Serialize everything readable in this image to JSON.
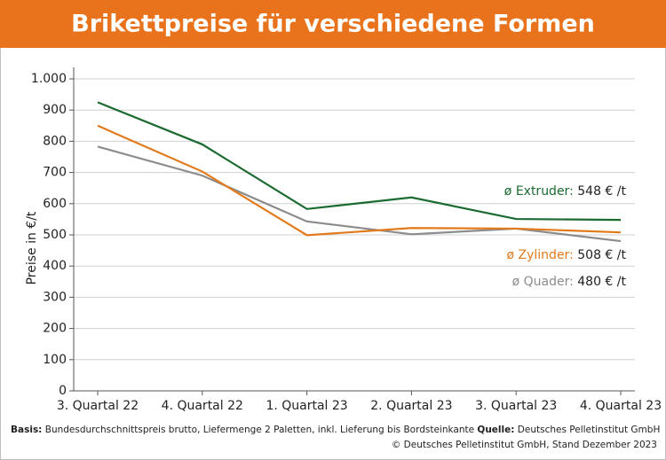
{
  "chart_data": {
    "type": "line",
    "title": "Brikettpreise für verschiedene Formen",
    "y_label": "Preise in €/t",
    "categories": [
      "3. Quartal 22",
      "4. Quartal 22",
      "1. Quartal 23",
      "2. Quartal 23",
      "3. Quartal 23",
      "4. Quartal 23"
    ],
    "series": [
      {
        "name": "ø Extruder:",
        "color": "#1b6a30",
        "values": [
          925,
          790,
          583,
          620,
          551,
          548
        ],
        "value_labels": [
          null,
          null,
          null,
          null,
          null,
          "548 € /t"
        ]
      },
      {
        "name": "ø Zylinder:",
        "color": "#e27a1c",
        "values": [
          850,
          703,
          499,
          522,
          520,
          508
        ],
        "value_labels": [
          null,
          null,
          null,
          null,
          null,
          "508 € /t"
        ]
      },
      {
        "name": "ø Quader:",
        "color": "#8c8c8c",
        "values": [
          783,
          690,
          543,
          502,
          520,
          480
        ],
        "value_labels": [
          null,
          null,
          null,
          null,
          null,
          "480 € /t"
        ]
      }
    ],
    "ylim": [
      0,
      1000
    ],
    "yticks": [
      0,
      100,
      200,
      300,
      400,
      500,
      600,
      700,
      800,
      900,
      {
        "value": 1000,
        "label": "1.000"
      }
    ],
    "grid": true
  },
  "footer": {
    "basis_label": "Basis:",
    "basis_text": "Bundesdurchschnittspreis brutto, Liefermenge 2 Paletten, inkl. Lieferung bis Bordsteinkante",
    "source_label": "Quelle:",
    "source_text": "Deutsches Pelletinstitut GmbH",
    "copyright": "© Deutsches Pelletinstitut GmbH, Stand Dezember 2023"
  }
}
